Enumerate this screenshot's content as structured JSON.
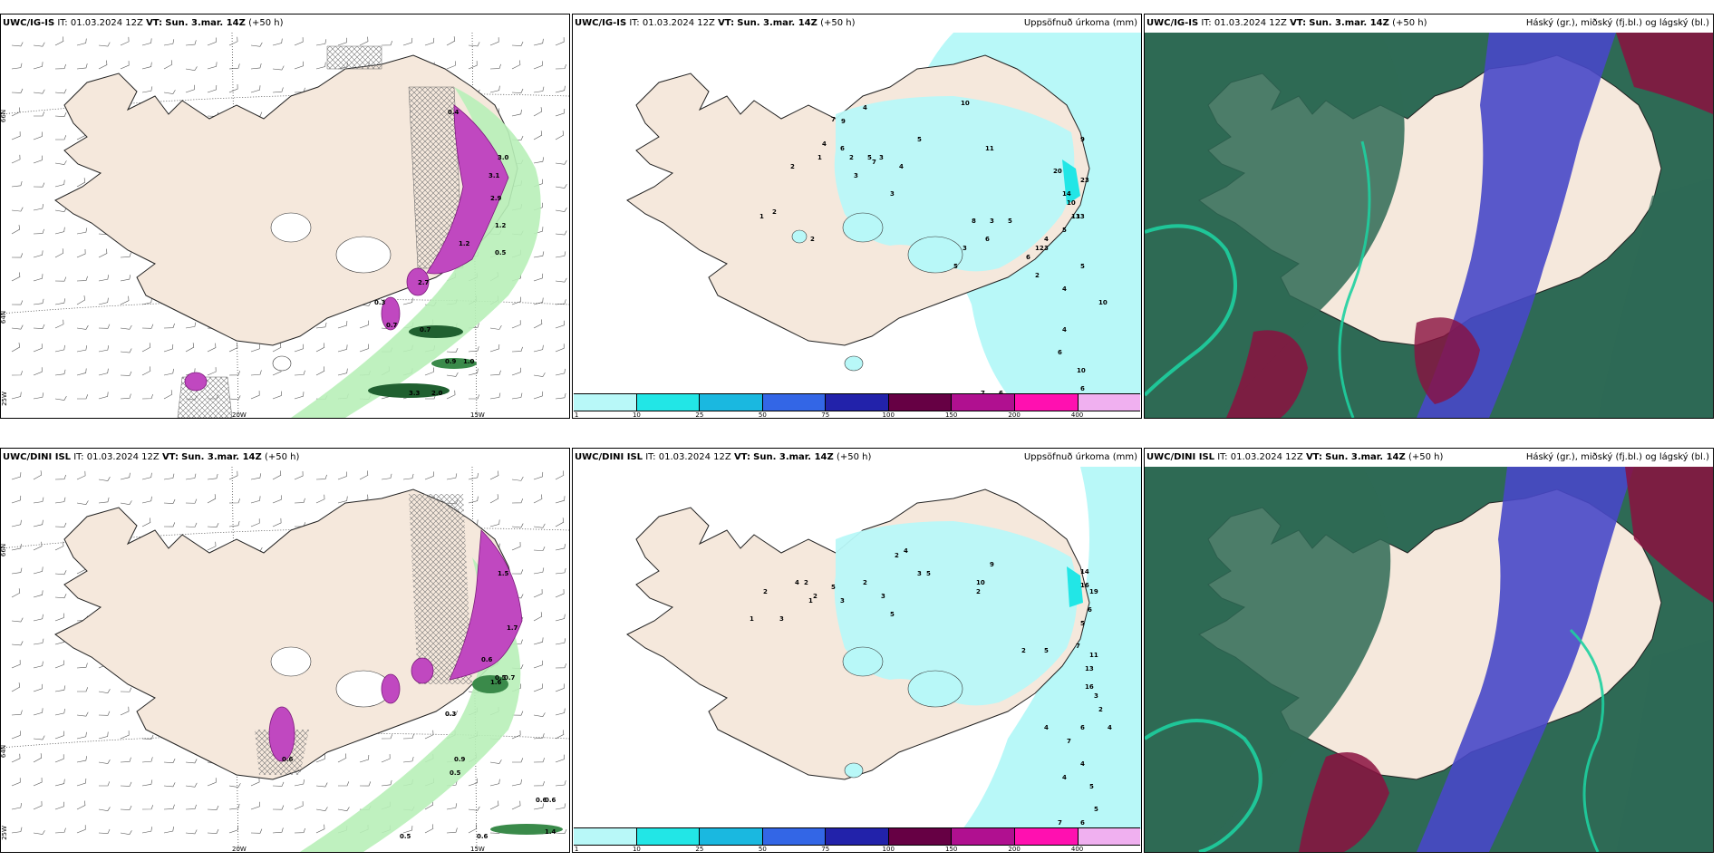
{
  "panels": {
    "top_left": {
      "model": "UWC/IG-IS",
      "it_label": "IT:",
      "it_value": "01.03.2024 12Z",
      "vt_label": "VT:",
      "vt_value": "Sun. 3.mar. 14Z",
      "lead": "(+50 h)",
      "title_right": "",
      "lat_labels": [
        "66N",
        "64N",
        "25W"
      ],
      "lon_labels": [
        "20W",
        "15W"
      ],
      "values": [
        "0.4",
        "3.0",
        "1.2",
        "0.5",
        "1.2",
        "0.7",
        "2.7",
        "0.9",
        "1.0",
        "3.3",
        "2.0",
        "0.7",
        "0.3",
        "3.1",
        "2.9"
      ]
    },
    "top_center": {
      "model": "UWC/IG-IS",
      "it_label": "IT:",
      "it_value": "01.03.2024 12Z",
      "vt_label": "VT:",
      "vt_value": "Sun. 3.mar. 14Z",
      "lead": "(+50 h)",
      "title_right": "Uppsöfnuð úrkoma (mm)",
      "values": [
        "1",
        "2",
        "1",
        "2",
        "4",
        "7",
        "9",
        "4",
        "6",
        "3",
        "2",
        "3",
        "5",
        "7",
        "2",
        "3",
        "4",
        "5",
        "10",
        "11",
        "20",
        "14",
        "23",
        "10",
        "13",
        "5",
        "4",
        "6",
        "3",
        "5",
        "8",
        "6",
        "3",
        "5",
        "12",
        "13",
        "2",
        "4",
        "5",
        "10",
        "4",
        "6",
        "10",
        "6",
        "7",
        "6",
        "3",
        "9"
      ]
    },
    "top_right": {
      "model": "UWC/IG-IS",
      "it_label": "IT:",
      "it_value": "01.03.2024 12Z",
      "vt_label": "VT:",
      "vt_value": "Sun. 3.mar. 14Z",
      "lead": "(+50 h)",
      "title_right": "Háský (gr.), miðský (fj.bl.) og lágský (bl.)"
    },
    "bottom_left": {
      "model": "UWC/DINI ISL",
      "it_label": "IT:",
      "it_value": "01.03.2024 12Z",
      "vt_label": "VT:",
      "vt_value": "Sun. 3.mar. 14Z",
      "lead": "(+50 h)",
      "title_right": "",
      "lat_labels": [
        "66N",
        "64N",
        "25W"
      ],
      "lon_labels": [
        "20W",
        "15W"
      ],
      "values": [
        "1.5",
        "0.5",
        "1.7",
        "0.6",
        "0.3",
        "0.7",
        "1.6",
        "0.9",
        "0.5",
        "0.6",
        "0.6",
        "0.5",
        "1.4",
        "0.6",
        "0.6"
      ]
    },
    "bottom_center": {
      "model": "UWC/DINI ISL",
      "it_label": "IT:",
      "it_value": "01.03.2024 12Z",
      "vt_label": "VT:",
      "vt_value": "Sun. 3.mar. 14Z",
      "lead": "(+50 h)",
      "title_right": "Uppsöfnuð úrkoma (mm)",
      "values": [
        "1",
        "2",
        "1",
        "2",
        "3",
        "4",
        "2",
        "5",
        "3",
        "2",
        "3",
        "5",
        "4",
        "3",
        "2",
        "5",
        "9",
        "10",
        "2",
        "14",
        "16",
        "19",
        "6",
        "5",
        "7",
        "11",
        "13",
        "16",
        "3",
        "2",
        "4",
        "6",
        "7",
        "4",
        "5",
        "5",
        "6",
        "7",
        "4",
        "4",
        "2",
        "5"
      ]
    },
    "bottom_right": {
      "model": "UWC/DINI ISL",
      "it_label": "IT:",
      "it_value": "01.03.2024 12Z",
      "vt_label": "VT:",
      "vt_value": "Sun. 3.mar. 14Z",
      "lead": "(+50 h)",
      "title_right": "Háský (gr.), miðský (fj.bl.) og lágský (bl.)"
    }
  },
  "colorbar": {
    "labels": [
      "1",
      "10",
      "25",
      "50",
      "75",
      "100",
      "150",
      "200",
      "400"
    ],
    "colors": [
      "#b8f8f8",
      "#22e6e6",
      "#1ab8e0",
      "#3366e6",
      "#2222aa",
      "#660044",
      "#b01090",
      "#ff10b0",
      "#f0b0f0"
    ]
  },
  "colors": {
    "land": "#f5e8dc",
    "precip_light": "#b8f8f8",
    "precip_mid": "#22e6e6",
    "precip_purple": "#c048c0",
    "green_light": "#b8f0b8",
    "green_dark": "#206030",
    "cloud_high": "#2e6a55",
    "cloud_mid": "#4848c8",
    "cloud_low": "#8a1040",
    "cloud_teal": "#1ed0a0"
  }
}
